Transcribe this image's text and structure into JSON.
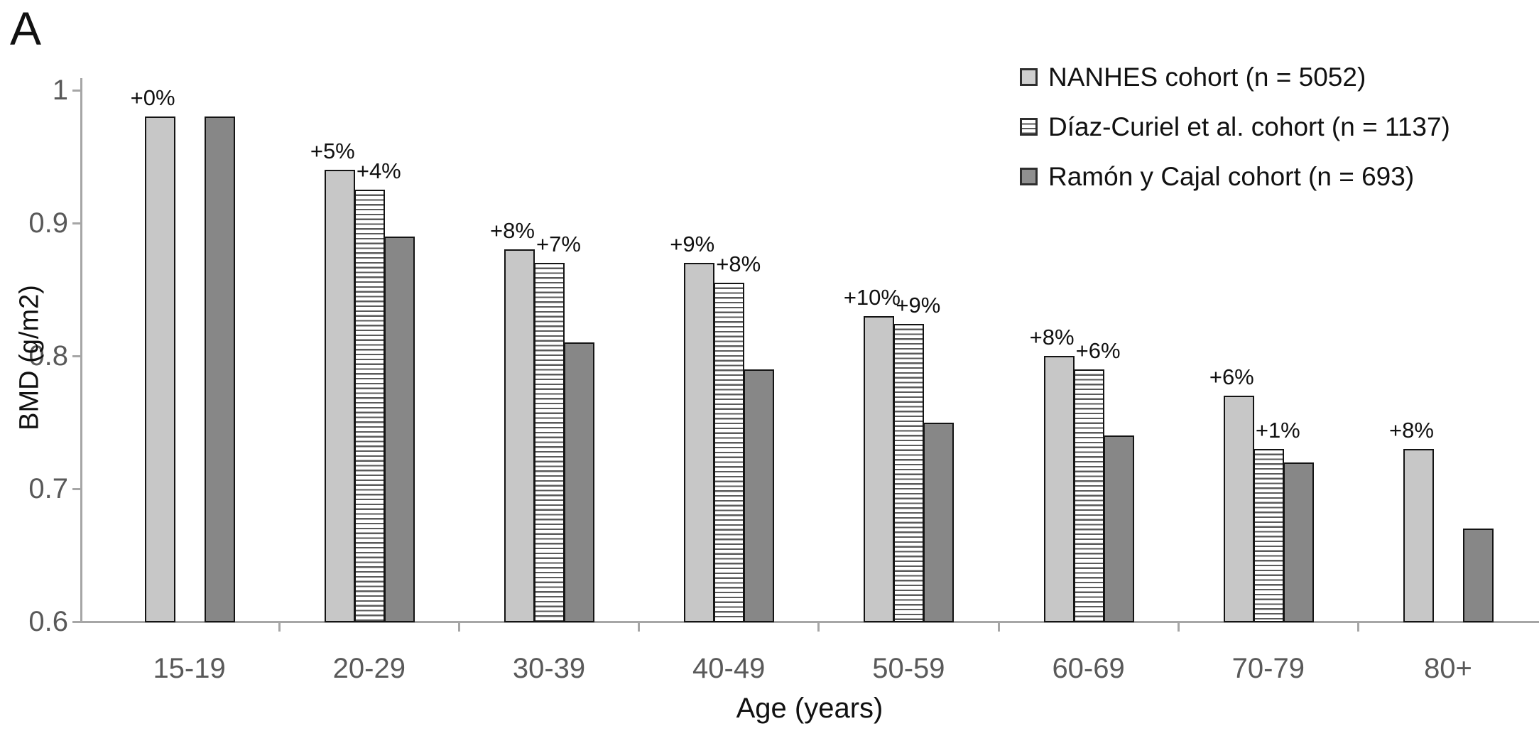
{
  "panel": {
    "letter": "A"
  },
  "chart_data": {
    "type": "bar",
    "title": "",
    "xlabel": "Age (years)",
    "ylabel": "BMD (g/m2)",
    "ylim": [
      0.6,
      1.0
    ],
    "grid": false,
    "legend_position": "top-right",
    "y_ticks": [
      {
        "label": "1",
        "value": 1.0
      },
      {
        "label": "0.9",
        "value": 0.9
      },
      {
        "label": "0.8",
        "value": 0.8
      },
      {
        "label": "0.7",
        "value": 0.7
      },
      {
        "label": "0.6",
        "value": 0.6
      }
    ],
    "categories": [
      "15-19",
      "20-29",
      "30-39",
      "40-49",
      "50-59",
      "60-69",
      "70-79",
      "80+"
    ],
    "series": [
      {
        "name": "nanhes",
        "legend": "NANHES cohort (n = 5052)",
        "style": "light-gray",
        "color": "#c7c7c7",
        "values": [
          0.98,
          0.94,
          0.88,
          0.87,
          0.83,
          0.8,
          0.77,
          0.73
        ],
        "bar_labels": [
          "+0%",
          "+5%",
          "+8%",
          "+9%",
          "+10%",
          "+8%",
          "+6%",
          "+8%"
        ]
      },
      {
        "name": "diaz-curiel",
        "legend": "Díaz-Curiel et al. cohort (n = 1137)",
        "style": "striped",
        "color": "#ffffff",
        "stripe_color": "#5a5a5a",
        "values": [
          null,
          0.925,
          0.87,
          0.855,
          0.824,
          0.79,
          0.73,
          null
        ],
        "bar_labels": [
          null,
          "+4%",
          "+7%",
          "+8%",
          "+9%",
          "+6%",
          "+1%",
          null
        ]
      },
      {
        "name": "ramon-y-cajal",
        "legend": "Ramón y Cajal cohort (n = 693)",
        "style": "dark-gray",
        "color": "#878787",
        "values": [
          0.98,
          0.89,
          0.81,
          0.79,
          0.75,
          0.74,
          0.72,
          0.67
        ],
        "bar_labels": [
          null,
          null,
          null,
          null,
          null,
          null,
          null,
          null
        ]
      }
    ],
    "colors": {
      "axis": "#a6a6a6",
      "tick_text": "#595959",
      "bar_border": "#141414",
      "label_text": "#111111"
    }
  }
}
